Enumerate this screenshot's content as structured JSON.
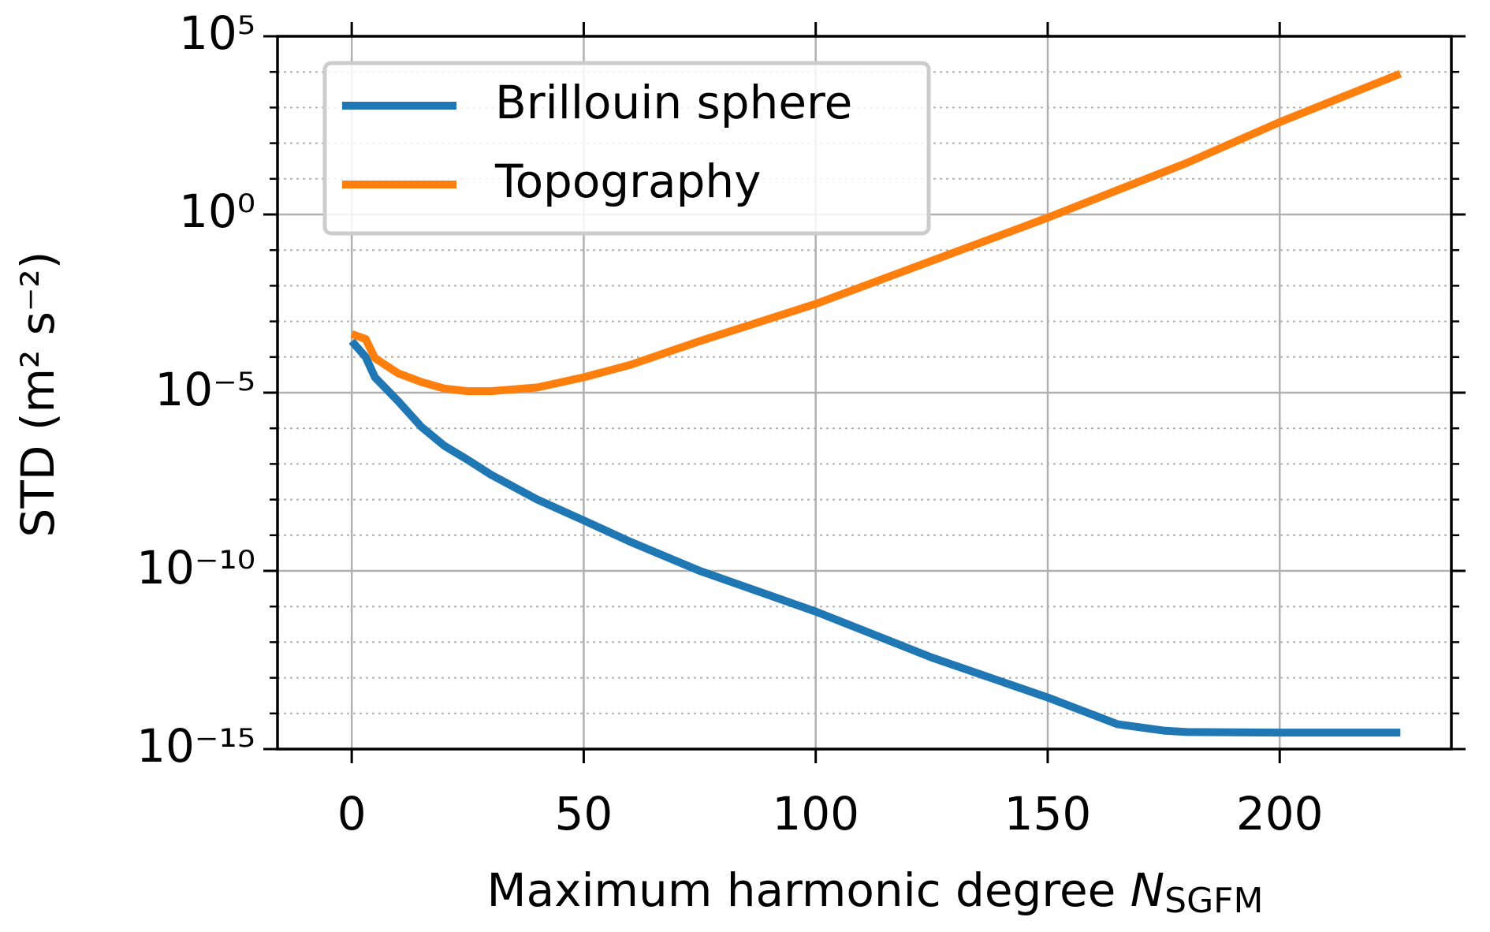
{
  "chart_data": {
    "type": "line",
    "x_label": {
      "text": "Maximum harmonic degree",
      "symbol": "N",
      "subscript": "SGFM"
    },
    "y_label": "STD (m² s⁻²)",
    "x": [
      0,
      3,
      5,
      10,
      15,
      20,
      25,
      30,
      40,
      50,
      60,
      75,
      100,
      125,
      150,
      165,
      175,
      180,
      200,
      226
    ],
    "series": [
      {
        "name": "Brillouin sphere",
        "color": "#1f77b4",
        "values": [
          0.00028,
          0.0001,
          2.7e-05,
          5.8e-06,
          1.1e-06,
          3.2e-07,
          1.3e-07,
          5e-08,
          1e-08,
          2.6e-09,
          6.6e-10,
          1e-10,
          7.2e-12,
          3.7e-13,
          2.8e-14,
          5e-15,
          3.3e-15,
          3e-15,
          2.9e-15,
          2.9e-15
        ]
      },
      {
        "name": "Topography",
        "color": "#ff7f0e",
        "values": [
          0.00044,
          0.00032,
          9.3e-05,
          3.5e-05,
          2e-05,
          1.3e-05,
          1.1e-05,
          1.1e-05,
          1.4e-05,
          2.7e-05,
          6e-05,
          0.00028,
          0.0031,
          0.05,
          0.81,
          4.8,
          15.5,
          28,
          389,
          8900
        ]
      }
    ],
    "xlim": [
      -16,
      237
    ],
    "xticks": [
      0,
      50,
      100,
      150,
      200
    ],
    "ylim": [
      1e-15,
      100000.0
    ],
    "log_y": true,
    "yticks": [
      {
        "value": 100000.0,
        "label": "10⁵"
      },
      {
        "value": 1,
        "label": "10⁰"
      },
      {
        "value": 1e-05,
        "label": "10⁻⁵"
      },
      {
        "value": 1e-10,
        "label": "10⁻¹⁰"
      },
      {
        "value": 1e-15,
        "label": "10⁻¹⁵"
      }
    ],
    "grid": true,
    "minor_grid": true,
    "legend": "upper left"
  }
}
